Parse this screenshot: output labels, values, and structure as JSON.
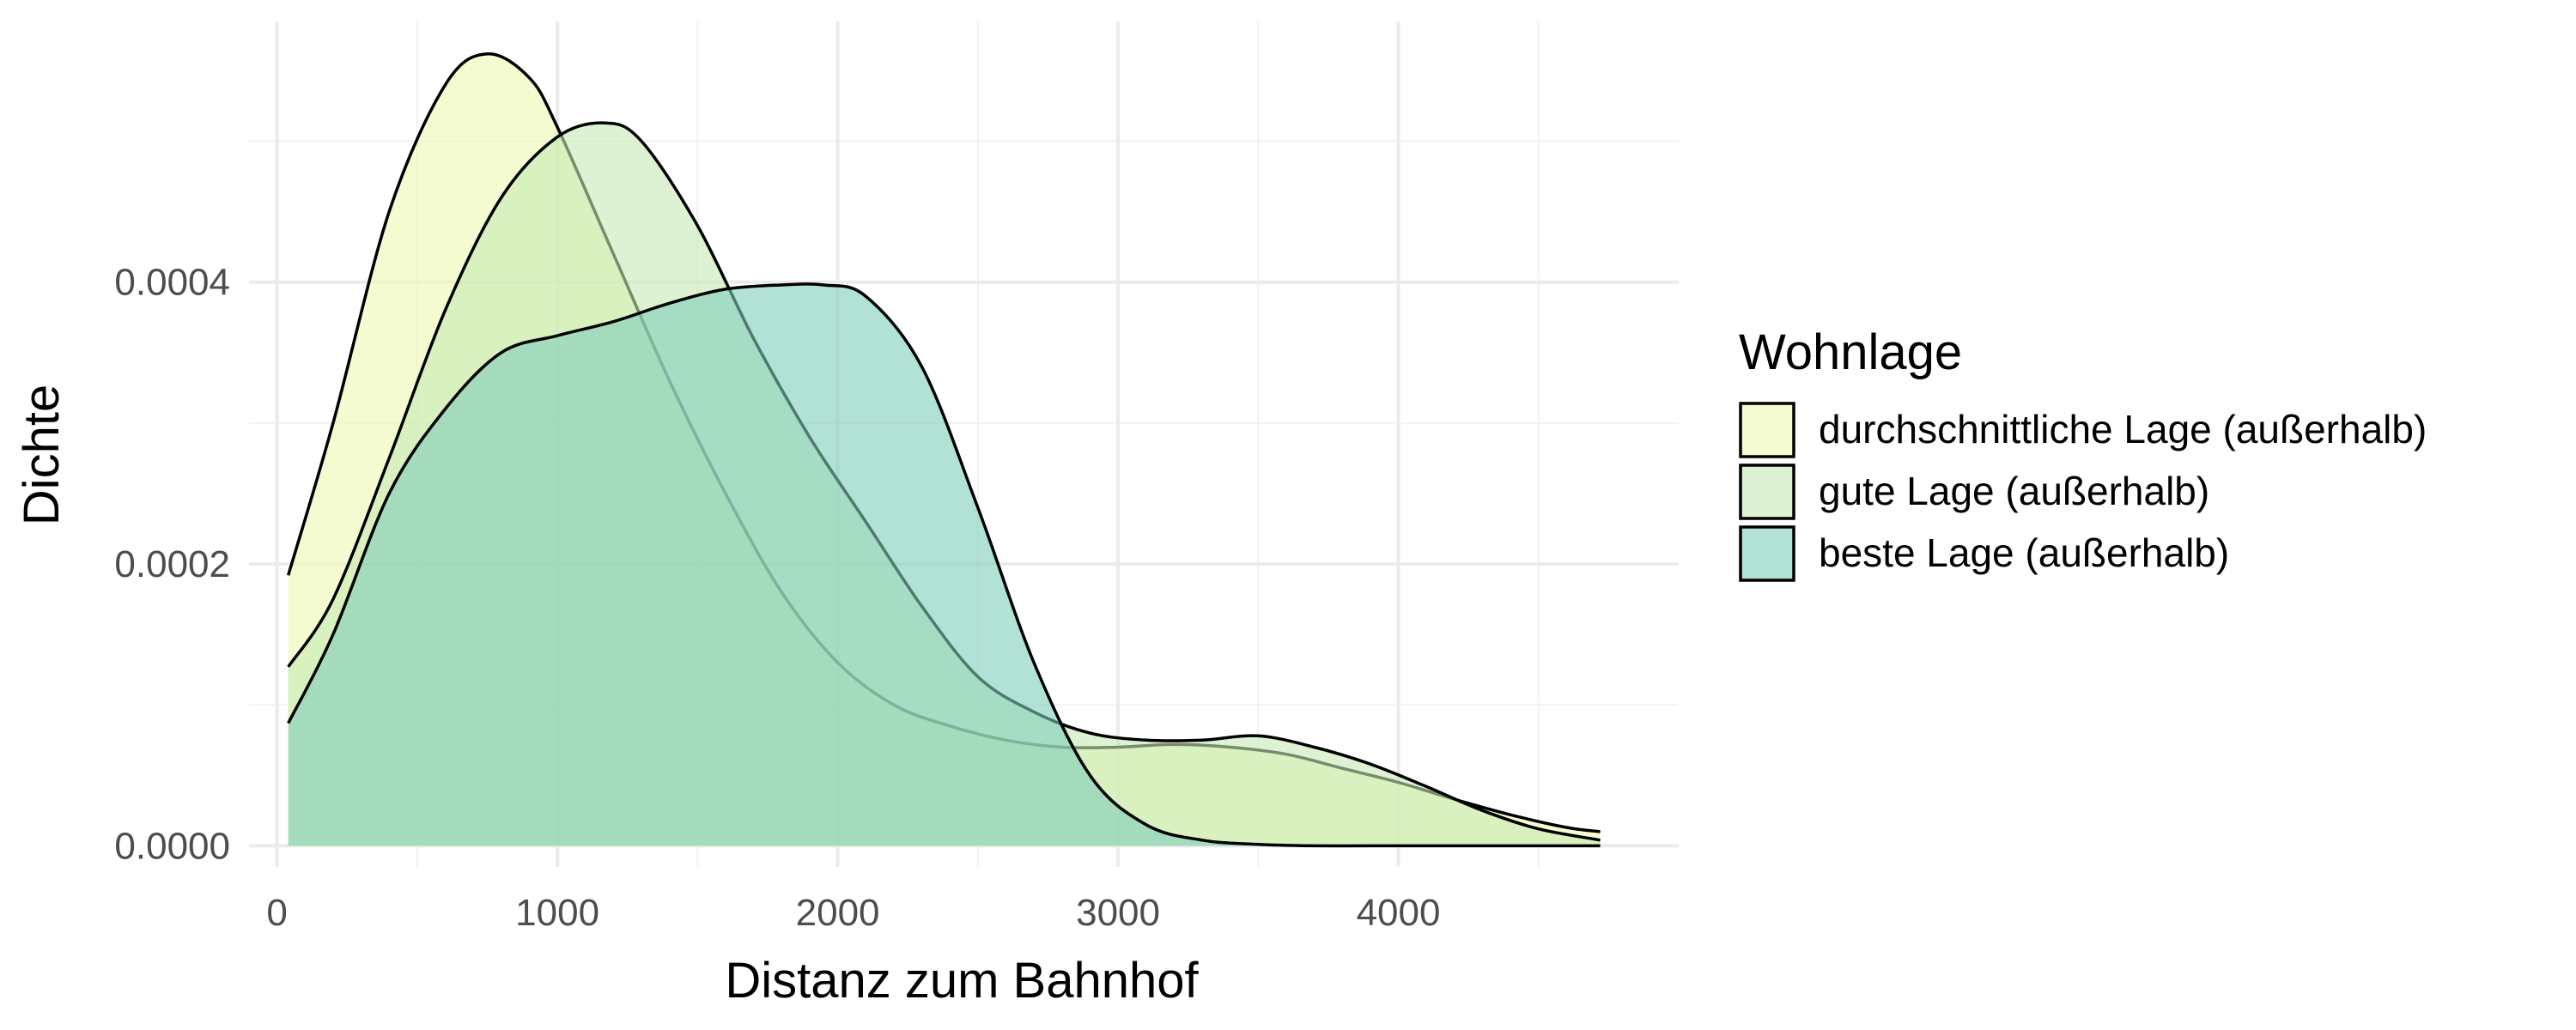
{
  "chart_data": {
    "type": "area",
    "subtype": "density",
    "xlabel": "Distanz zum Bahnhof",
    "ylabel": "Dichte",
    "xlim": [
      -100,
      5000
    ],
    "ylim": [
      -1.5e-05,
      0.000585
    ],
    "x_ticks": [
      0,
      1000,
      2000,
      3000,
      4000
    ],
    "x_tick_labels": [
      "0",
      "1000",
      "2000",
      "3000",
      "4000"
    ],
    "y_ticks": [
      0,
      0.0002,
      0.0004
    ],
    "y_tick_labels": [
      "0.0000",
      "0.0002",
      "0.0004"
    ],
    "grid": true,
    "legend": {
      "title": "Wohnlage",
      "position": "right"
    },
    "series": [
      {
        "name": "durchschnittliche Lage (außerhalb)",
        "color": "#edf8b1",
        "x": [
          40,
          200,
          400,
          600,
          750,
          900,
          1000,
          1200,
          1400,
          1600,
          1800,
          2000,
          2200,
          2400,
          2600,
          2800,
          3000,
          3200,
          3400,
          3600,
          3800,
          4000,
          4200,
          4400,
          4600,
          4720
        ],
        "y": [
          0.000192,
          0.0003,
          0.00045,
          0.00054,
          0.000562,
          0.000545,
          0.00051,
          0.00042,
          0.00033,
          0.00025,
          0.00018,
          0.00013,
          0.0001,
          8.5e-05,
          7.5e-05,
          7e-05,
          7e-05,
          7.2e-05,
          7e-05,
          6.5e-05,
          5.5e-05,
          4.5e-05,
          3.3e-05,
          2.2e-05,
          1.3e-05,
          1e-05
        ]
      },
      {
        "name": "gute Lage (außerhalb)",
        "color": "#c7e9b4",
        "x": [
          40,
          200,
          400,
          600,
          800,
          1000,
          1170,
          1300,
          1500,
          1700,
          1900,
          2100,
          2300,
          2500,
          2700,
          2900,
          3100,
          3300,
          3500,
          3700,
          3900,
          4100,
          4300,
          4500,
          4720
        ],
        "y": [
          0.000127,
          0.000175,
          0.000275,
          0.00038,
          0.00046,
          0.000503,
          0.000513,
          0.0005,
          0.00044,
          0.00036,
          0.00029,
          0.00023,
          0.00017,
          0.00012,
          9.5e-05,
          8e-05,
          7.5e-05,
          7.5e-05,
          7.8e-05,
          7e-05,
          5.8e-05,
          4.2e-05,
          2.5e-05,
          1.2e-05,
          4e-06
        ]
      },
      {
        "name": "beste Lage (außerhalb)",
        "color": "#7fcdbb",
        "x": [
          40,
          200,
          400,
          600,
          800,
          1000,
          1200,
          1400,
          1600,
          1800,
          1950,
          2100,
          2300,
          2500,
          2700,
          2900,
          3100,
          3300,
          3500,
          3700,
          3900,
          4100,
          4300,
          4500,
          4720
        ],
        "y": [
          8.7e-05,
          0.00015,
          0.00025,
          0.00031,
          0.00035,
          0.000362,
          0.000372,
          0.000385,
          0.000395,
          0.000398,
          0.000398,
          0.00039,
          0.00034,
          0.00024,
          0.00013,
          5e-05,
          1.5e-05,
          4e-06,
          1e-06,
          0.0,
          0.0,
          0.0,
          0.0,
          0.0,
          0.0
        ]
      }
    ]
  }
}
